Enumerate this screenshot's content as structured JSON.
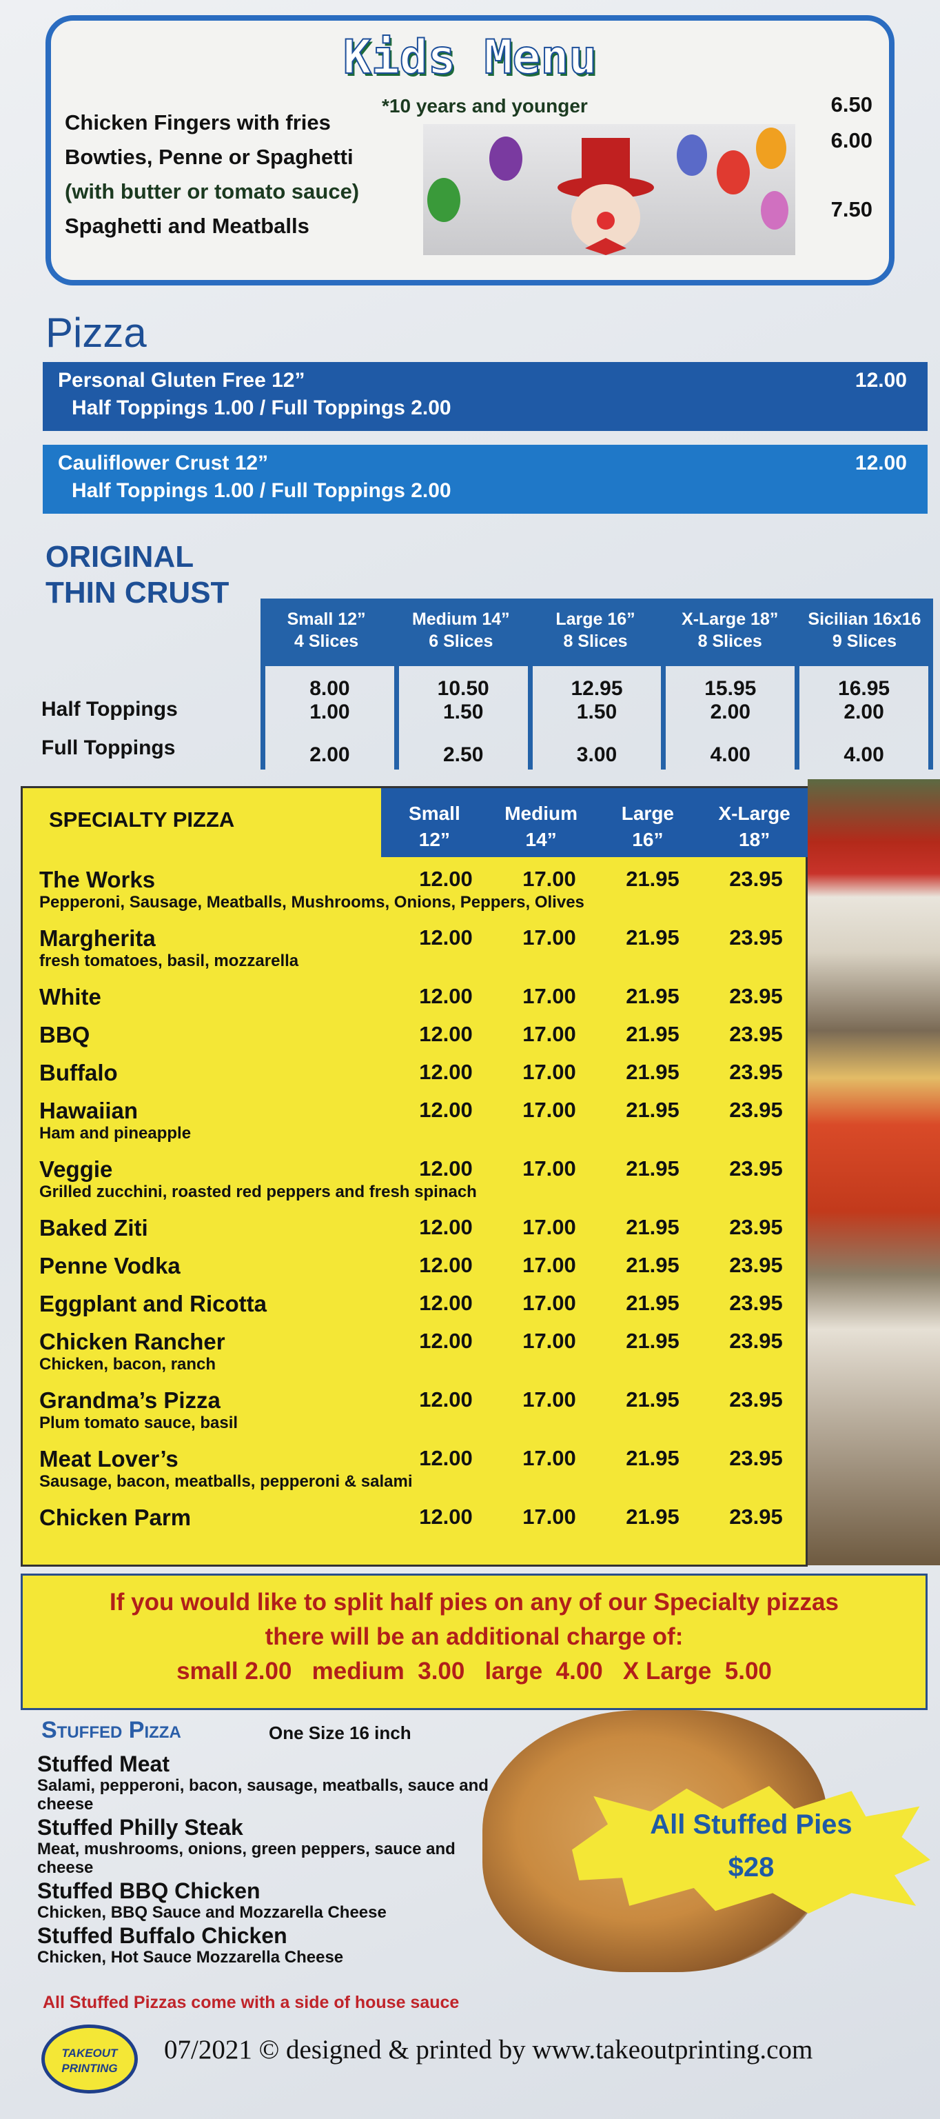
{
  "kids": {
    "title": "Kids Menu",
    "note": "*10 years and younger",
    "items": [
      {
        "name": "Chicken Fingers with fries",
        "price": "6.50"
      },
      {
        "name": "Bowties, Penne or Spaghetti",
        "price": "6.00"
      },
      {
        "name": "(with butter or tomato sauce)",
        "price": ""
      },
      {
        "name": "Spaghetti and Meatballs",
        "price": "7.50"
      }
    ]
  },
  "pizza": {
    "title": "Pizza",
    "bars": [
      {
        "name": "Personal Gluten Free 12”",
        "toppings": "Half Toppings  1.00 / Full Toppings  2.00",
        "price": "12.00",
        "color": "#1f5aa6"
      },
      {
        "name": "Cauliflower Crust  12”",
        "toppings": "Half Toppings  1.00 / Full Toppings  2.00",
        "price": "12.00",
        "color": "#1f78c8"
      }
    ]
  },
  "thin_crust": {
    "title_1": "ORIGINAL",
    "title_2": "THIN CRUST",
    "row_labels": [
      "Half Toppings",
      "Full Toppings"
    ],
    "columns": [
      {
        "size": "Small 12”",
        "slices": "4 Slices",
        "price": "8.00",
        "half": "1.00",
        "full": "2.00"
      },
      {
        "size": "Medium 14”",
        "slices": "6 Slices",
        "price": "10.50",
        "half": "1.50",
        "full": "2.50"
      },
      {
        "size": "Large 16”",
        "slices": "8 Slices",
        "price": "12.95",
        "half": "1.50",
        "full": "3.00"
      },
      {
        "size": "X-Large 18”",
        "slices": "8 Slices",
        "price": "15.95",
        "half": "2.00",
        "full": "4.00"
      },
      {
        "size": "Sicilian 16x16",
        "slices": "9 Slices",
        "price": "16.95",
        "half": "2.00",
        "full": "4.00"
      }
    ]
  },
  "specialty": {
    "title": "SPECIALTY PIZZA",
    "sizes": [
      {
        "name": "Small",
        "inch": "12”"
      },
      {
        "name": "Medium",
        "inch": "14”"
      },
      {
        "name": "Large",
        "inch": "16”"
      },
      {
        "name": "X-Large",
        "inch": "18”"
      }
    ],
    "items": [
      {
        "name": "The Works",
        "desc": "Pepperoni, Sausage, Meatballs, Mushrooms, Onions, Peppers, Olives",
        "prices": [
          "12.00",
          "17.00",
          "21.95",
          "23.95"
        ]
      },
      {
        "name": "Margherita",
        "desc": "fresh tomatoes, basil, mozzarella",
        "prices": [
          "12.00",
          "17.00",
          "21.95",
          "23.95"
        ]
      },
      {
        "name": "White",
        "desc": "",
        "prices": [
          "12.00",
          "17.00",
          "21.95",
          "23.95"
        ]
      },
      {
        "name": "BBQ",
        "desc": "",
        "prices": [
          "12.00",
          "17.00",
          "21.95",
          "23.95"
        ]
      },
      {
        "name": "Buffalo",
        "desc": "",
        "prices": [
          "12.00",
          "17.00",
          "21.95",
          "23.95"
        ]
      },
      {
        "name": "Hawaiian",
        "desc": "Ham and pineapple",
        "prices": [
          "12.00",
          "17.00",
          "21.95",
          "23.95"
        ]
      },
      {
        "name": "Veggie",
        "desc": "Grilled zucchini, roasted red peppers and fresh spinach",
        "prices": [
          "12.00",
          "17.00",
          "21.95",
          "23.95"
        ]
      },
      {
        "name": "Baked Ziti",
        "desc": "",
        "prices": [
          "12.00",
          "17.00",
          "21.95",
          "23.95"
        ]
      },
      {
        "name": "Penne Vodka",
        "desc": "",
        "prices": [
          "12.00",
          "17.00",
          "21.95",
          "23.95"
        ]
      },
      {
        "name": "Eggplant and Ricotta",
        "desc": "",
        "prices": [
          "12.00",
          "17.00",
          "21.95",
          "23.95"
        ]
      },
      {
        "name": "Chicken Rancher",
        "desc": "Chicken, bacon, ranch",
        "prices": [
          "12.00",
          "17.00",
          "21.95",
          "23.95"
        ]
      },
      {
        "name": "Grandma’s Pizza",
        "desc": "Plum tomato sauce, basil",
        "prices": [
          "12.00",
          "17.00",
          "21.95",
          "23.95"
        ]
      },
      {
        "name": "Meat Lover’s",
        "desc": "Sausage, bacon, meatballs, pepperoni & salami",
        "prices": [
          "12.00",
          "17.00",
          "21.95",
          "23.95"
        ]
      },
      {
        "name": "Chicken Parm",
        "desc": "",
        "prices": [
          "12.00",
          "17.00",
          "21.95",
          "23.95"
        ]
      }
    ]
  },
  "split_note": {
    "line1": "If you would like to split half pies on any of our Specialty pizzas",
    "line2": "there will be an additional charge of:",
    "line3": "small 2.00   medium  3.00   large  4.00   X Large  5.00"
  },
  "stuffed": {
    "title": "Stuffed Pizza",
    "size_note": "One Size 16 inch",
    "items": [
      {
        "name": "Stuffed Meat",
        "desc": "Salami, pepperoni, bacon, sausage, meatballs, sauce and cheese"
      },
      {
        "name": "Stuffed Philly Steak",
        "desc": "Meat, mushrooms, onions, green peppers, sauce and cheese"
      },
      {
        "name": "Stuffed BBQ Chicken",
        "desc": "Chicken, BBQ Sauce  and Mozzarella Cheese"
      },
      {
        "name": "Stuffed Buffalo Chicken",
        "desc": "Chicken, Hot Sauce Mozzarella Cheese"
      }
    ],
    "note": "All Stuffed Pizzas come with a side of house sauce",
    "promo_line1": "All Stuffed Pies",
    "promo_line2": "$28"
  },
  "footer": {
    "logo_text": "TAKEOUT PRINTING",
    "credit": "07/2021 © designed & printed by www.takeoutprinting.com"
  },
  "colors": {
    "brand_blue": "#1f5aa6",
    "highlight_yellow": "#f4e736",
    "accent_red": "#b11f1a"
  }
}
